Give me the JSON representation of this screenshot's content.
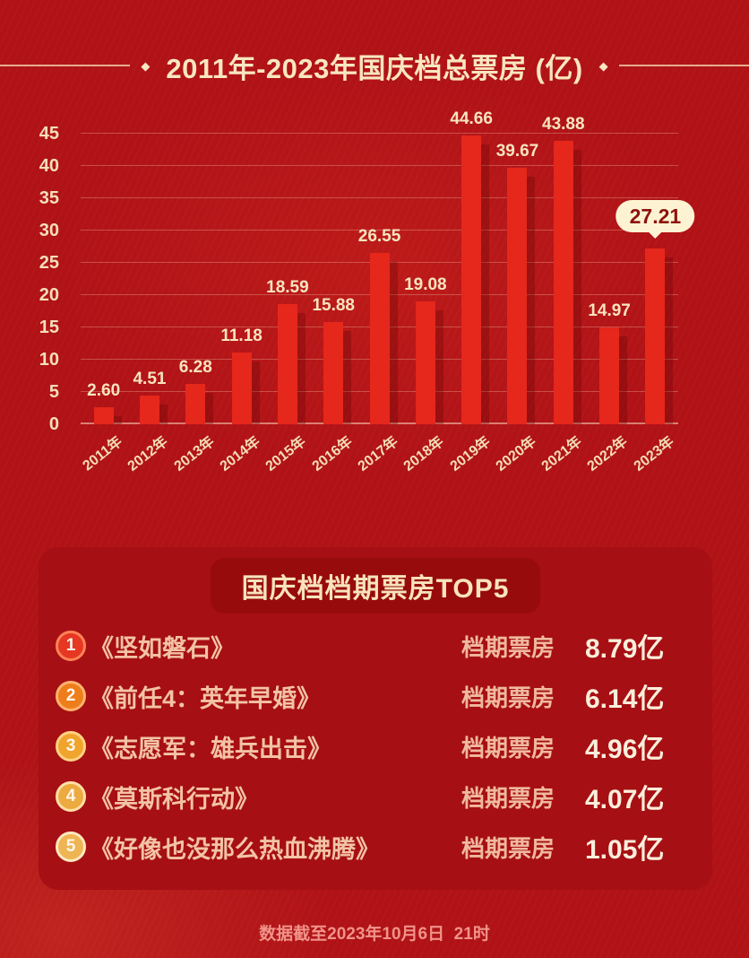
{
  "colors": {
    "background": "#b01216",
    "panel": "#a60f13",
    "banner": "#970b0d",
    "bar": "#e5271c",
    "cream_text": "#f8e6c1",
    "salmon_text": "#f3c3a6",
    "value_text": "#f9eedb",
    "bubble_bg": "#fdf3d2",
    "bubble_text": "#8e120e",
    "footer_text": "#f0938a"
  },
  "icons": {
    "diamond": "◆"
  },
  "header": {
    "title": "2011年-2023年国庆档总票房 (亿)"
  },
  "chart_data": {
    "type": "bar",
    "title": "2011年-2023年国庆档总票房 (亿)",
    "categories": [
      "2011年",
      "2012年",
      "2013年",
      "2014年",
      "2015年",
      "2016年",
      "2017年",
      "2018年",
      "2019年",
      "2020年",
      "2021年",
      "2022年",
      "2023年"
    ],
    "values": [
      2.6,
      4.51,
      6.28,
      11.18,
      18.59,
      15.88,
      26.55,
      19.08,
      44.66,
      39.67,
      43.88,
      14.97,
      27.21
    ],
    "bar_labels": [
      "2.60",
      "4.51",
      "6.28",
      "11.18",
      "18.59",
      "15.88",
      "26.55",
      "19.08",
      "44.66",
      "39.67",
      "43.88",
      "14.97",
      "27.21"
    ],
    "highlight_index": 12,
    "xlabel": "",
    "ylabel": "",
    "ylim": [
      0,
      45
    ],
    "yticks": [
      0,
      5,
      10,
      15,
      20,
      25,
      30,
      35,
      40,
      45
    ],
    "grid": true,
    "legend": "none",
    "unit": "亿"
  },
  "top5": {
    "header": "国庆档档期票房TOP5",
    "rows": [
      {
        "rank": "1",
        "title": "《坚如磐石》",
        "label": "档期票房",
        "value": "8.79亿",
        "badge_color": "#e63722",
        "ring_color": "#ff8258"
      },
      {
        "rank": "2",
        "title": "《前任4：英年早婚》",
        "label": "档期票房",
        "value": "6.14亿",
        "badge_color": "#ee7d1b",
        "ring_color": "#ffb36e"
      },
      {
        "rank": "3",
        "title": "《志愿军：雄兵出击》",
        "label": "档期票房",
        "value": "4.96亿",
        "badge_color": "#f0a42c",
        "ring_color": "#ffd284"
      },
      {
        "rank": "4",
        "title": "《莫斯科行动》",
        "label": "档期票房",
        "value": "4.07亿",
        "badge_color": "#ecaa40",
        "ring_color": "#ffdfa6"
      },
      {
        "rank": "5",
        "title": "《好像也没那么热血沸腾》",
        "label": "档期票房",
        "value": "1.05亿",
        "badge_color": "#efb453",
        "ring_color": "#ffe9c0"
      }
    ]
  },
  "footer": {
    "text": "数据截至2023年10月6日  21时"
  }
}
